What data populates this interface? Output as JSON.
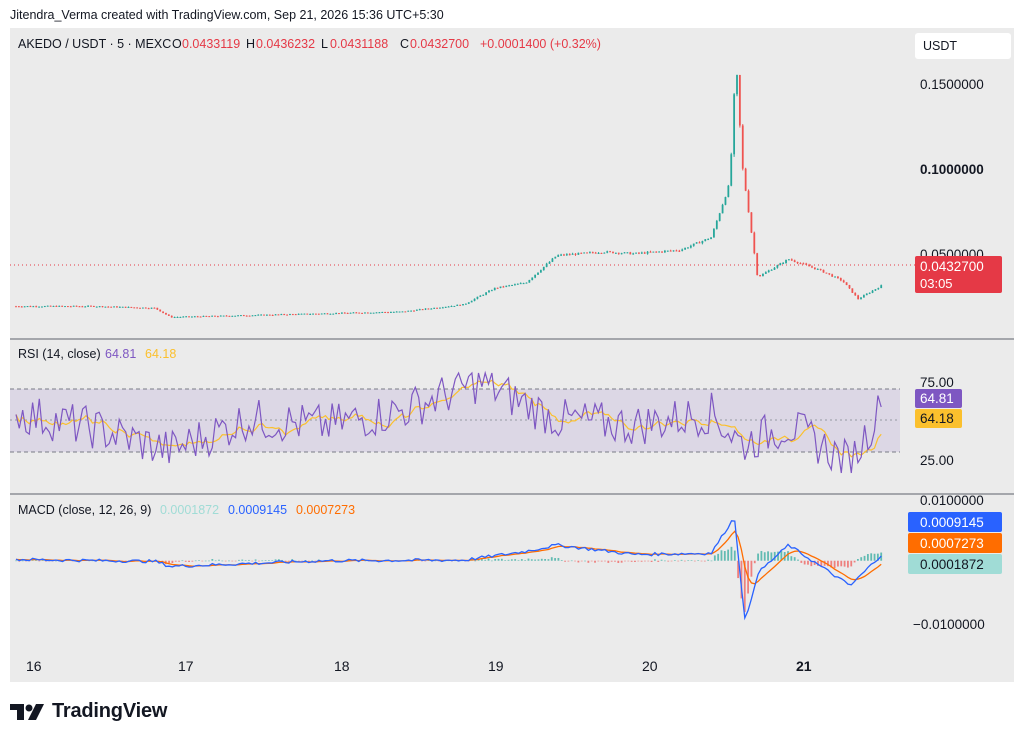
{
  "caption": "Jitendra_Verma created with TradingView.com, Sep 21, 2026 15:36 UTC+5:30",
  "brand": "TradingView",
  "colors": {
    "up": "#26a69a",
    "down": "#ef5350",
    "rsi": "#7e57c2",
    "rsi_ma": "#fbc02d",
    "macd": "#2962ff",
    "signal": "#ff6d00",
    "hist_up": "#26a69a",
    "hist_down": "#ef5350",
    "price_tag": "#e53946"
  },
  "main_header": {
    "symbol": "AKEDO / USDT · 5 · MEXC",
    "o_label": "O",
    "o_value": "0.0433119",
    "h_label": "H",
    "h_value": "0.0436232",
    "l_label": "L",
    "l_value": "0.0431188",
    "c_label": "C",
    "c_value": "0.0432700",
    "change": "+0.0001400 (+0.32%)"
  },
  "currency_button": "USDT",
  "price_axis": [
    "0.1500000",
    "0.1000000",
    "0.0500000"
  ],
  "last_price_tag": {
    "price": "0.0432700",
    "countdown": "03:05"
  },
  "rsi_panel": {
    "title": "RSI (14, close)",
    "rsi_value": "64.81",
    "ma_value": "64.18",
    "axis": [
      "75.00",
      "25.00"
    ]
  },
  "macd_panel": {
    "title": "MACD (close, 12, 26, 9)",
    "hist_value": "0.0001872",
    "macd_value": "0.0009145",
    "signal_value": "0.0007273",
    "axis": [
      "0.0100000",
      "−0.0100000"
    ]
  },
  "time_axis": [
    "16",
    "17",
    "18",
    "19",
    "20",
    "21"
  ],
  "chart_data": [
    {
      "type": "line",
      "name": "price",
      "x": [
        "16",
        "16.5",
        "16.9",
        "17",
        "17.5",
        "18",
        "18.5",
        "18.9",
        "19.1",
        "19.3",
        "19.5",
        "19.8",
        "20",
        "20.3",
        "20.5",
        "20.62",
        "20.66",
        "20.7",
        "20.8",
        "21",
        "21.2",
        "21.35",
        "21.45",
        "21.6"
      ],
      "values": [
        0.032,
        0.032,
        0.031,
        0.026,
        0.027,
        0.028,
        0.029,
        0.033,
        0.042,
        0.045,
        0.06,
        0.062,
        0.061,
        0.063,
        0.07,
        0.1,
        0.168,
        0.11,
        0.048,
        0.058,
        0.052,
        0.046,
        0.036,
        0.0433
      ],
      "ylim": [
        0.02,
        0.17
      ]
    },
    {
      "type": "line",
      "name": "RSI",
      "x": [
        "16",
        "16.5",
        "17",
        "17.5",
        "18",
        "18.5",
        "19",
        "19.5",
        "20",
        "20.5",
        "20.7",
        "21",
        "21.4",
        "21.6"
      ],
      "values": [
        60,
        48,
        30,
        55,
        50,
        62,
        85,
        55,
        50,
        60,
        35,
        50,
        20,
        64.81
      ],
      "ylim": [
        0,
        100
      ]
    },
    {
      "type": "line",
      "name": "MACD",
      "x": [
        "16",
        "16.9",
        "17",
        "18",
        "18.9",
        "19.3",
        "19.5",
        "20",
        "20.5",
        "20.65",
        "20.72",
        "20.8",
        "21",
        "21.4",
        "21.6"
      ],
      "values": [
        0.0002,
        -0.0001,
        -0.0009,
        0.0,
        0.0001,
        0.0015,
        0.0025,
        0.001,
        0.0012,
        0.007,
        -0.01,
        -0.002,
        0.0025,
        -0.004,
        0.0009145
      ],
      "ylim": [
        -0.012,
        0.01
      ]
    }
  ]
}
